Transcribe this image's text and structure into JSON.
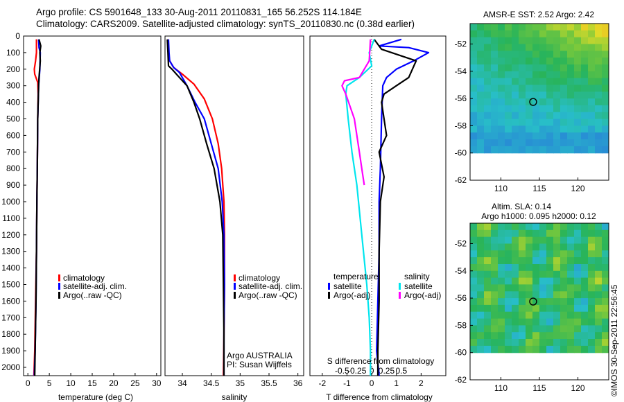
{
  "header": {
    "line1": "Argo profile: CS 5901648_133 30-Aug-2011 20110831_165 56.252S 114.184E",
    "line2": "Climatology: CARS2009. Satellite-adjusted climatology: synTS_20110830.nc (0.38d earlier)"
  },
  "footer_stamp": "©IMOS 30-Sep-2011 22:56:45",
  "colors": {
    "climatology": "#ff0000",
    "satellite": "#0000ff",
    "argo": "#000000",
    "satellite_salinity": "#00e5ee",
    "argo_salinity": "#ff00ff"
  },
  "chart_data": [
    {
      "id": "temperature",
      "type": "line",
      "xlabel": "temperature (deg C)",
      "ylabel": "",
      "xlim": [
        -1,
        31
      ],
      "ylim": [
        2070,
        0
      ],
      "xticks": [
        0,
        5,
        10,
        15,
        20,
        25,
        30
      ],
      "yticks": [
        0,
        100,
        200,
        300,
        400,
        500,
        600,
        700,
        800,
        900,
        1000,
        1100,
        1200,
        1300,
        1400,
        1500,
        1600,
        1700,
        1800,
        1900,
        2000
      ],
      "legend": [
        "climatology",
        "satellite-adj. clim.",
        "Argo(..raw -QC)"
      ],
      "series": [
        {
          "name": "climatology",
          "color": "#ff0000",
          "x": [
            2.0,
            2.0,
            1.8,
            1.5,
            1.6,
            2.3,
            2.4,
            2.3,
            2.2,
            2.1,
            2.0,
            1.8,
            1.6,
            1.4
          ],
          "y": [
            20,
            100,
            150,
            200,
            230,
            280,
            350,
            500,
            800,
            1000,
            1300,
            1600,
            1900,
            2050
          ]
        },
        {
          "name": "satellite-adj. clim.",
          "color": "#0000ff",
          "x": [
            2.5,
            2.6,
            2.9,
            2.8,
            2.5,
            2.3,
            2.2,
            2.1,
            2.0,
            1.9,
            1.7,
            1.5
          ],
          "y": [
            20,
            70,
            100,
            200,
            300,
            500,
            800,
            1000,
            1300,
            1600,
            1900,
            2050
          ]
        },
        {
          "name": "Argo(..raw -QC)",
          "color": "#000000",
          "x": [
            2.6,
            3.0,
            2.8,
            2.9,
            2.6,
            2.5,
            2.3,
            2.2,
            2.1,
            2.0,
            1.9,
            1.7,
            1.6
          ],
          "y": [
            20,
            60,
            100,
            150,
            250,
            300,
            500,
            800,
            1000,
            1300,
            1600,
            1900,
            2050
          ]
        }
      ]
    },
    {
      "id": "salinity",
      "type": "line",
      "xlabel": "salinity",
      "ylabel": "",
      "xlim": [
        33.7,
        36.1
      ],
      "ylim": [
        2070,
        0
      ],
      "xticks": [
        34,
        34.5,
        35,
        35.5,
        36
      ],
      "xtick_labels": [
        "34",
        "34.5",
        "35",
        "35.5",
        "36"
      ],
      "legend": [
        "climatology",
        "satellite-adj. clim.",
        "Argo(..raw -QC)"
      ],
      "annotation": [
        "Argo AUSTRALIA",
        "PI: Susan Wijffels"
      ],
      "series": [
        {
          "name": "climatology",
          "color": "#ff0000",
          "x": [
            33.75,
            33.76,
            33.78,
            33.85,
            34.0,
            34.2,
            34.38,
            34.52,
            34.62,
            34.68,
            34.72,
            34.73,
            34.73,
            34.72,
            34.71
          ],
          "y": [
            20,
            100,
            150,
            190,
            230,
            290,
            380,
            500,
            650,
            800,
            1000,
            1200,
            1500,
            1800,
            2050
          ]
        },
        {
          "name": "satellite-adj. clim.",
          "color": "#0000ff",
          "x": [
            33.76,
            33.77,
            33.78,
            33.85,
            33.95,
            34.08,
            34.22,
            34.38,
            34.5,
            34.62,
            34.69,
            34.72,
            34.73,
            34.72,
            34.72
          ],
          "y": [
            20,
            100,
            150,
            190,
            220,
            300,
            400,
            500,
            650,
            800,
            1000,
            1200,
            1500,
            1800,
            2050
          ]
        },
        {
          "name": "Argo(..raw -QC)",
          "color": "#000000",
          "x": [
            33.74,
            33.75,
            33.76,
            33.82,
            33.95,
            34.08,
            34.2,
            34.3,
            34.42,
            34.55,
            34.65,
            34.7,
            34.71,
            34.72,
            34.72
          ],
          "y": [
            20,
            100,
            180,
            200,
            250,
            300,
            400,
            500,
            650,
            800,
            1000,
            1200,
            1500,
            1800,
            2050
          ]
        }
      ]
    },
    {
      "id": "difference",
      "type": "line",
      "xlabel": "T difference from climatology",
      "xlabel_top": "S difference from climatology",
      "ylabel": "",
      "xlim": [
        -2.5,
        3.0
      ],
      "ylim": [
        2070,
        0
      ],
      "xticks": [
        -2,
        -1,
        0,
        1,
        2
      ],
      "xticks_S": [
        -0.5,
        -0.25,
        0,
        0.25,
        0.5
      ],
      "xtick_labels_S": [
        "-0.5",
        "-0.25",
        "0",
        "0.25",
        "0.5"
      ],
      "legend": [
        "temperature",
        "satellite",
        "Argo(-adj)",
        "salinity",
        "satellite",
        "Argo(-adj)"
      ],
      "series": [
        {
          "name": "temperature satellite",
          "color": "#0000ff",
          "x": [
            1.2,
            0.3,
            1.5,
            2.3,
            1.7,
            1.0,
            0.6,
            0.45,
            0.4,
            0.35,
            0.3,
            0.3,
            0.25,
            0.2,
            0.3
          ],
          "y": [
            20,
            60,
            70,
            100,
            150,
            200,
            250,
            300,
            500,
            800,
            1000,
            1300,
            1600,
            1900,
            2050
          ]
        },
        {
          "name": "temperature Argo(-adj)",
          "color": "#000000",
          "x": [
            0.1,
            0.4,
            1.8,
            1.5,
            1.0,
            0.5,
            0.4,
            0.6,
            0.3,
            0.5,
            0.35,
            0.3,
            0.3,
            0.25,
            0.25
          ],
          "y": [
            20,
            80,
            150,
            250,
            300,
            350,
            400,
            600,
            700,
            850,
            1000,
            1300,
            1600,
            1900,
            2050
          ]
        },
        {
          "name": "salinity satellite",
          "color": "#00e5ee",
          "x": [
            0.1,
            -0.1,
            0.0,
            -0.5,
            -1.0,
            -1.05,
            -0.95,
            -0.8,
            -0.6,
            -0.4,
            -0.2,
            -0.1,
            -0.05,
            -0.05
          ],
          "y": [
            20,
            100,
            180,
            250,
            300,
            350,
            500,
            700,
            900,
            1200,
            1500,
            1700,
            1900,
            2050
          ]
        },
        {
          "name": "salinity Argo(-adj)",
          "color": "#ff00ff",
          "x": [
            -0.05,
            -0.1,
            -0.3,
            -0.5,
            -1.1,
            -1.2,
            -1.05,
            -0.7,
            -0.5,
            -0.4,
            -0.3
          ],
          "y": [
            20,
            150,
            200,
            250,
            270,
            300,
            350,
            500,
            700,
            800,
            900
          ]
        }
      ]
    },
    {
      "id": "sst_map",
      "type": "heatmap",
      "title": "AMSR-E SST: 2.52 Argo: 2.42",
      "xlim": [
        106,
        124
      ],
      "ylim": [
        -62,
        -50.5
      ],
      "xticks": [
        110,
        115,
        120
      ],
      "yticks": [
        -52,
        -54,
        -56,
        -58,
        -60,
        -62
      ],
      "marker": {
        "lon": 114.184,
        "lat": -56.252
      }
    },
    {
      "id": "sla_map",
      "type": "heatmap",
      "title": "Altim. SLA: 0.14",
      "subtitle": "Argo h1000: 0.095 h2000: 0.12",
      "xlim": [
        106,
        124
      ],
      "ylim": [
        -62,
        -50.5
      ],
      "xticks": [
        110,
        115,
        120
      ],
      "yticks": [
        -52,
        -54,
        -56,
        -58,
        -60,
        -62
      ],
      "marker": {
        "lon": 114.184,
        "lat": -56.252
      }
    }
  ]
}
